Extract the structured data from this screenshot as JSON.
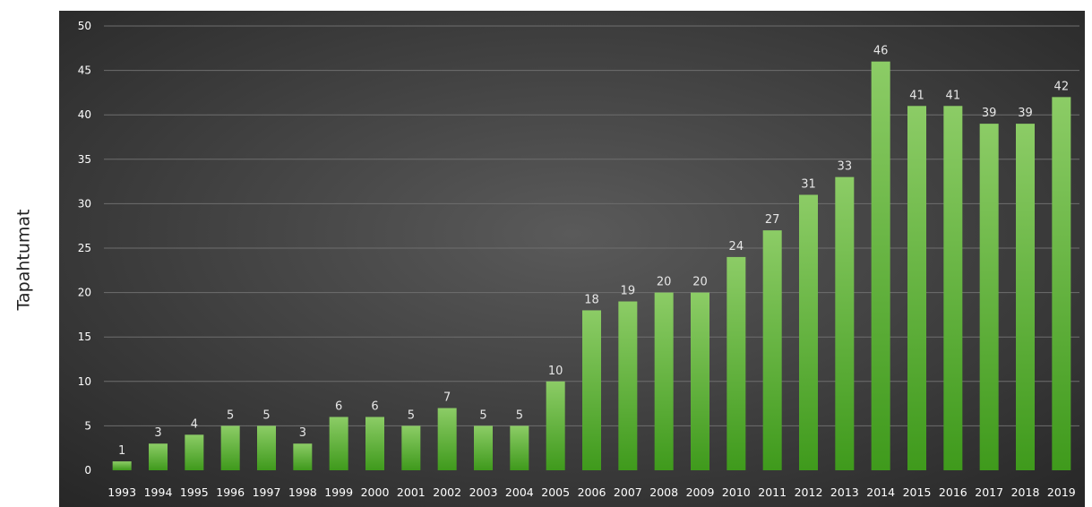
{
  "chart_data": {
    "type": "bar",
    "title": "",
    "xlabel": "",
    "ylabel": "Tapahtumat",
    "ylim": [
      0,
      50
    ],
    "yticks": [
      0,
      5,
      10,
      15,
      20,
      25,
      30,
      35,
      40,
      45,
      50
    ],
    "grid": true,
    "categories": [
      "1993",
      "1994",
      "1995",
      "1996",
      "1997",
      "1998",
      "1999",
      "2000",
      "2001",
      "2002",
      "2003",
      "2004",
      "2005",
      "2006",
      "2007",
      "2008",
      "2009",
      "2010",
      "2011",
      "2012",
      "2013",
      "2014",
      "2015",
      "2016",
      "2017",
      "2018",
      "2019"
    ],
    "values": [
      1,
      3,
      4,
      5,
      5,
      3,
      6,
      6,
      5,
      7,
      5,
      5,
      10,
      18,
      19,
      20,
      20,
      24,
      27,
      31,
      33,
      46,
      41,
      41,
      39,
      39,
      42
    ],
    "data_labels": true,
    "colors": {
      "bar_top": "#8ccc66",
      "bar_bottom": "#3f9a1c",
      "background_center": "#5a5a5a",
      "background_edge": "#262626",
      "grid": "#6e6e6e"
    }
  }
}
